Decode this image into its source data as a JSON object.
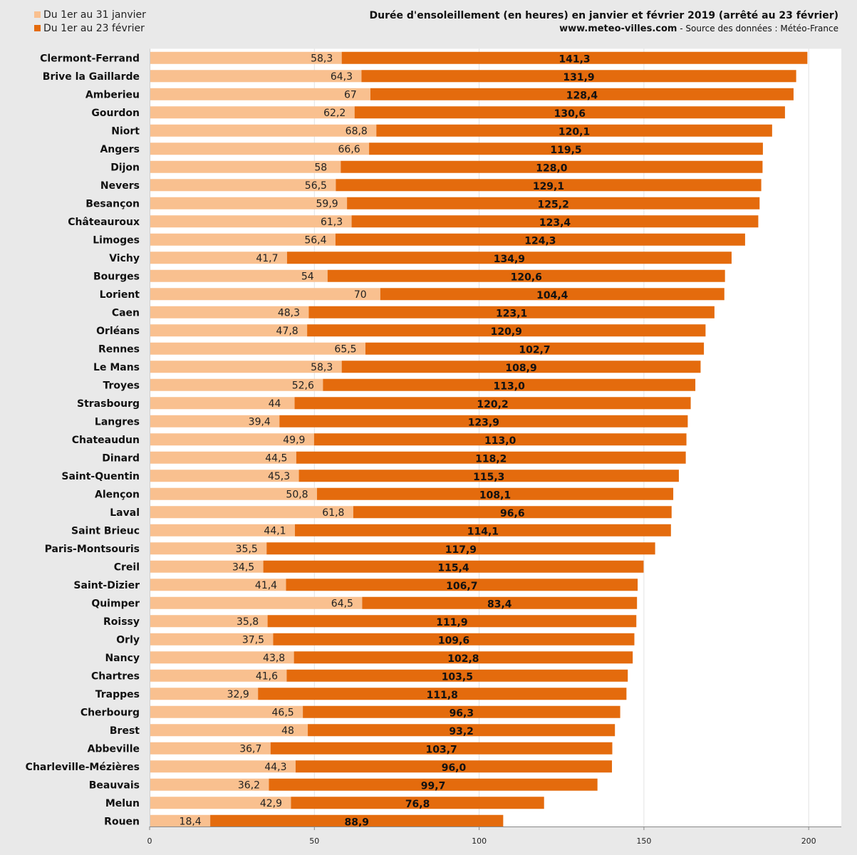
{
  "legend": {
    "items": [
      {
        "label": "Du 1er au 31 janvier",
        "color": "#f9c08f"
      },
      {
        "label": "Du 1er au 23 février",
        "color": "#e46b0d"
      }
    ]
  },
  "header": {
    "title": "Durée d'ensoleillement (en heures) en janvier et février 2019 (arrêté au 23 février)",
    "site": "www.meteo-villes.com",
    "source": " - Source des données : Météo-France"
  },
  "chart_data": {
    "type": "bar",
    "orientation": "horizontal",
    "stacked": true,
    "title": "Durée d'ensoleillement (en heures) en janvier et février 2019 (arrêté au 23 février)",
    "xlabel": "",
    "ylabel": "",
    "xlim": [
      0,
      210
    ],
    "xticks": [
      0,
      50,
      100,
      150,
      200
    ],
    "grid": true,
    "legend_position": "top-left",
    "categories": [
      "Clermont-Ferrand",
      "Brive la Gaillarde",
      "Amberieu",
      "Gourdon",
      "Niort",
      "Angers",
      "Dijon",
      "Nevers",
      "Besançon",
      "Châteauroux",
      "Limoges",
      "Vichy",
      "Bourges",
      "Lorient",
      "Caen",
      "Orléans",
      "Rennes",
      "Le Mans",
      "Troyes",
      "Strasbourg",
      "Langres",
      "Chateaudun",
      "Dinard",
      "Saint-Quentin",
      "Alençon",
      "Laval",
      "Saint Brieuc",
      "Paris-Montsouris",
      "Creil",
      "Saint-Dizier",
      "Quimper",
      "Roissy",
      "Orly",
      "Nancy",
      "Chartres",
      "Trappes",
      "Cherbourg",
      "Brest",
      "Abbeville",
      "Charleville-Mézières",
      "Beauvais",
      "Melun",
      "Rouen"
    ],
    "series": [
      {
        "name": "Du 1er au 31 janvier",
        "color": "#f9c08f",
        "values": [
          58.3,
          64.3,
          67,
          62.2,
          68.8,
          66.6,
          58,
          56.5,
          59.9,
          61.3,
          56.4,
          41.7,
          54,
          70,
          48.3,
          47.8,
          65.5,
          58.3,
          52.6,
          44,
          39.4,
          49.9,
          44.5,
          45.3,
          50.8,
          61.8,
          44.1,
          35.5,
          34.5,
          41.4,
          64.5,
          35.8,
          37.5,
          43.8,
          41.6,
          32.9,
          46.5,
          48,
          36.7,
          44.3,
          36.2,
          42.9,
          18.4
        ],
        "labels": [
          "58,3",
          "64,3",
          "67",
          "62,2",
          "68,8",
          "66,6",
          "58",
          "56,5",
          "59,9",
          "61,3",
          "56,4",
          "41,7",
          "54",
          "70",
          "48,3",
          "47,8",
          "65,5",
          "58,3",
          "52,6",
          "44",
          "39,4",
          "49,9",
          "44,5",
          "45,3",
          "50,8",
          "61,8",
          "44,1",
          "35,5",
          "34,5",
          "41,4",
          "64,5",
          "35,8",
          "37,5",
          "43,8",
          "41,6",
          "32,9",
          "46,5",
          "48",
          "36,7",
          "44,3",
          "36,2",
          "42,9",
          "18,4"
        ]
      },
      {
        "name": "Du 1er au 23 février",
        "color": "#e46b0d",
        "values": [
          141.3,
          131.9,
          128.4,
          130.6,
          120.1,
          119.5,
          128.0,
          129.1,
          125.2,
          123.4,
          124.3,
          134.9,
          120.6,
          104.4,
          123.1,
          120.9,
          102.7,
          108.9,
          113.0,
          120.2,
          123.9,
          113.0,
          118.2,
          115.3,
          108.1,
          96.6,
          114.1,
          117.9,
          115.4,
          106.7,
          83.4,
          111.9,
          109.6,
          102.8,
          103.5,
          111.8,
          96.3,
          93.2,
          103.7,
          96.0,
          99.7,
          76.8,
          88.9
        ],
        "labels": [
          "141,3",
          "131,9",
          "128,4",
          "130,6",
          "120,1",
          "119,5",
          "128,0",
          "129,1",
          "125,2",
          "123,4",
          "124,3",
          "134,9",
          "120,6",
          "104,4",
          "123,1",
          "120,9",
          "102,7",
          "108,9",
          "113,0",
          "120,2",
          "123,9",
          "113,0",
          "118,2",
          "115,3",
          "108,1",
          "96,6",
          "114,1",
          "117,9",
          "115,4",
          "106,7",
          "83,4",
          "111,9",
          "109,6",
          "102,8",
          "103,5",
          "111,8",
          "96,3",
          "93,2",
          "103,7",
          "96,0",
          "99,7",
          "76,8",
          "88,9"
        ]
      }
    ]
  }
}
